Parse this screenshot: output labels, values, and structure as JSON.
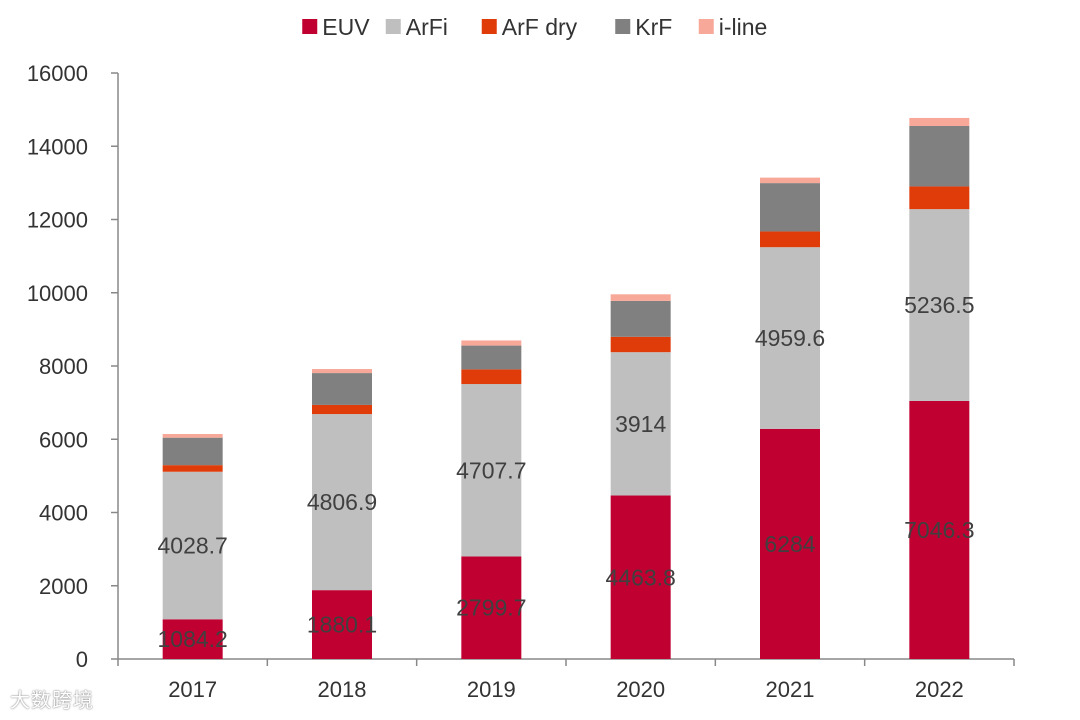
{
  "chart_data": {
    "type": "bar",
    "stacked": true,
    "title": "",
    "xlabel": "",
    "ylabel": "",
    "ylim": [
      0,
      16000
    ],
    "yticks": [
      0,
      2000,
      4000,
      6000,
      8000,
      10000,
      12000,
      14000,
      16000
    ],
    "categories": [
      "2017",
      "2018",
      "2019",
      "2020",
      "2021",
      "2022"
    ],
    "legend_position": "top-center",
    "grid": false,
    "series": [
      {
        "name": "EUV",
        "color": "#C00030",
        "values": [
          1084.2,
          1880.1,
          2799.7,
          4463.8,
          6284,
          7046.3
        ],
        "labels": [
          "1084.2",
          "1880.1",
          "2799.7",
          "4463.8",
          "6284",
          "7046.3"
        ]
      },
      {
        "name": "ArFi",
        "color": "#BFBFBF",
        "values": [
          4028.7,
          4806.9,
          4707.7,
          3914,
          4959.6,
          5236.5
        ],
        "labels": [
          "4028.7",
          "4806.9",
          "4707.7",
          "3914",
          "4959.6",
          "5236.5"
        ]
      },
      {
        "name": "ArF dry",
        "color": "#E03C0A",
        "values": [
          180,
          250,
          400,
          420,
          430,
          620
        ]
      },
      {
        "name": "KrF",
        "color": "#808080",
        "values": [
          750,
          870,
          650,
          980,
          1320,
          1650
        ]
      },
      {
        "name": "i-line",
        "color": "#F8A898",
        "values": [
          100,
          110,
          140,
          180,
          150,
          220
        ]
      }
    ]
  },
  "watermark": "大数跨境"
}
